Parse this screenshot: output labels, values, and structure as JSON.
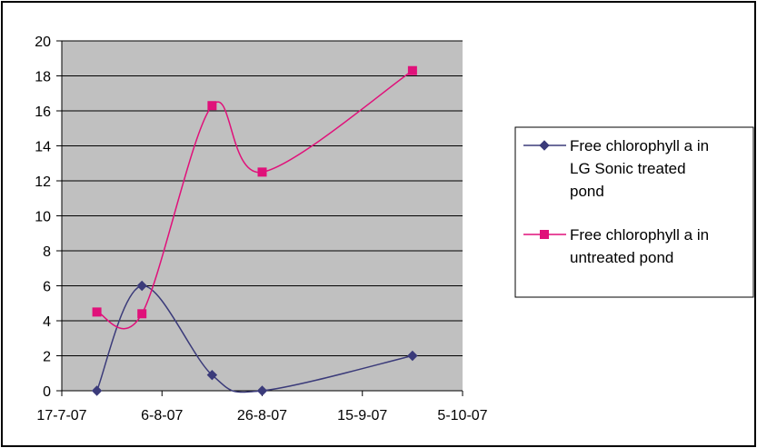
{
  "chart_data": {
    "type": "line",
    "title": "",
    "xlabel": "",
    "ylabel": "",
    "xlim": [
      "2007-07-17",
      "2007-10-05"
    ],
    "ylim": [
      0,
      20
    ],
    "grid": true,
    "legend_position": "right",
    "x_ticks": [
      {
        "date": "2007-07-17",
        "label": "17-7-07"
      },
      {
        "date": "2007-08-06",
        "label": "6-8-07"
      },
      {
        "date": "2007-08-26",
        "label": "26-8-07"
      },
      {
        "date": "2007-09-15",
        "label": "15-9-07"
      },
      {
        "date": "2007-10-05",
        "label": "5-10-07"
      }
    ],
    "y_ticks": [
      0,
      2,
      4,
      6,
      8,
      10,
      12,
      14,
      16,
      18,
      20
    ],
    "series": [
      {
        "name": "Free chlorophyll a in LG Sonic treated pond",
        "legend_lines": [
          "Free chlorophyll a in",
          "LG Sonic treated",
          "pond"
        ],
        "color": "#3B3B7A",
        "marker": "diamond",
        "points": [
          {
            "x": "2007-07-24",
            "y": 0
          },
          {
            "x": "2007-08-02",
            "y": 6
          },
          {
            "x": "2007-08-16",
            "y": 0.9
          },
          {
            "x": "2007-08-26",
            "y": 0
          },
          {
            "x": "2007-09-25",
            "y": 2
          }
        ]
      },
      {
        "name": "Free chlorophyll a in untreated pond",
        "legend_lines": [
          "Free chlorophyll a in",
          "untreated pond"
        ],
        "color": "#E0117A",
        "marker": "square",
        "points": [
          {
            "x": "2007-07-24",
            "y": 4.5
          },
          {
            "x": "2007-08-02",
            "y": 4.4
          },
          {
            "x": "2007-08-16",
            "y": 16.3
          },
          {
            "x": "2007-08-26",
            "y": 12.5
          },
          {
            "x": "2007-09-25",
            "y": 18.3
          }
        ]
      }
    ]
  }
}
